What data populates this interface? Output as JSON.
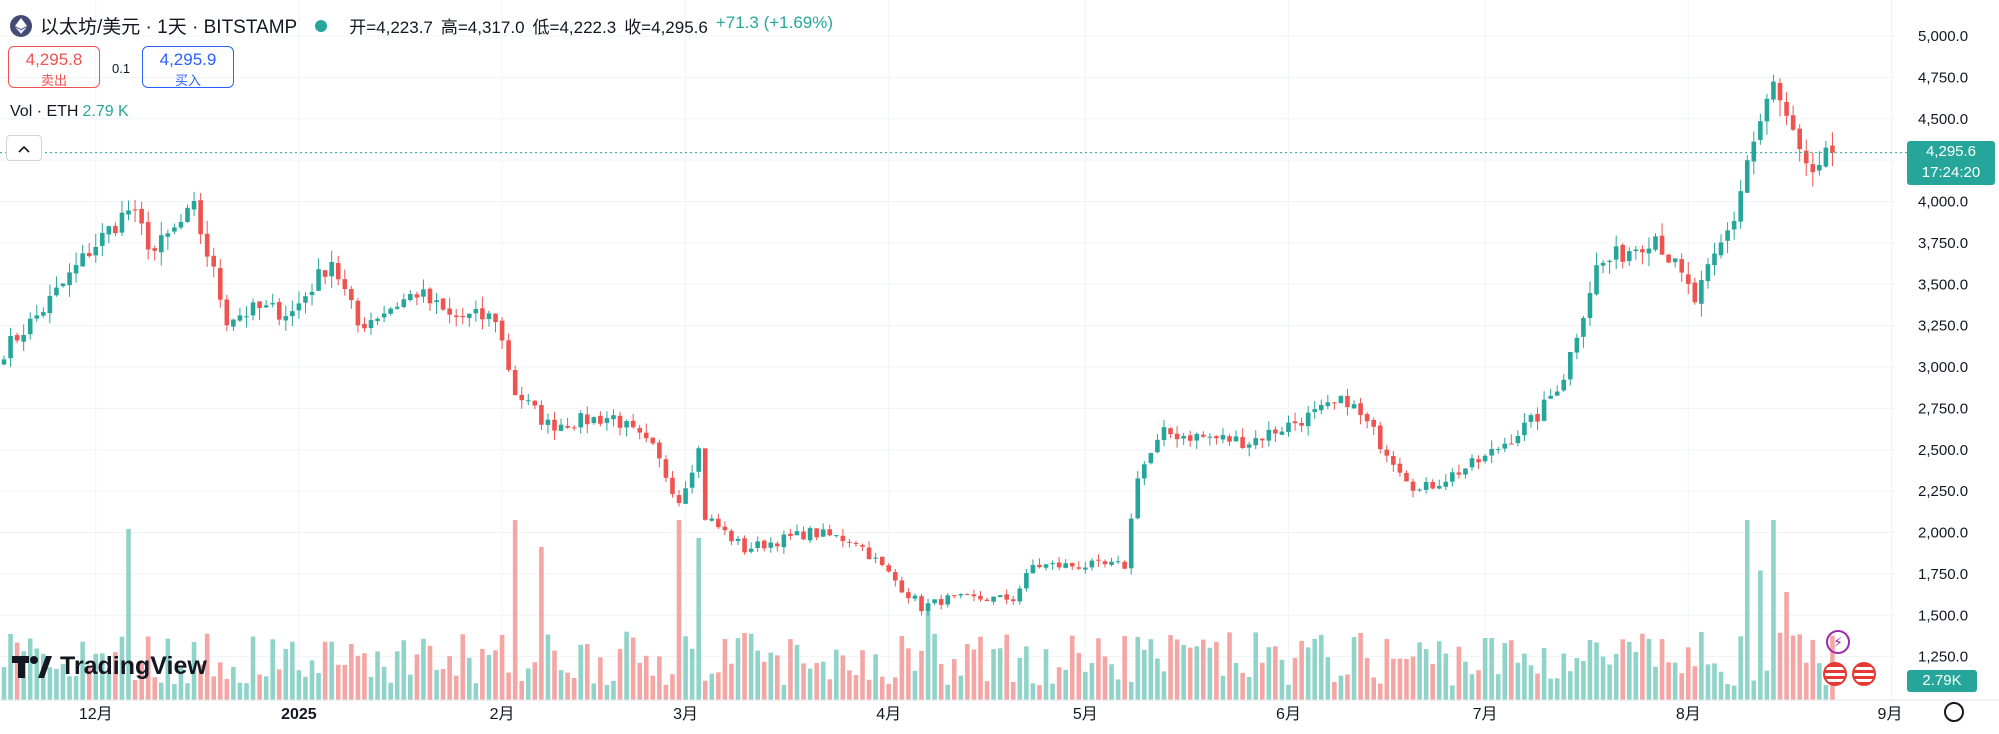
{
  "header": {
    "symbol": "以太坊/美元 · 1天 · BITSTAMP",
    "open": "开=4,223.7",
    "high": "高=4,317.0",
    "low": "低=4,222.3",
    "close": "收=4,295.6",
    "change": "+71.3 (+1.69%)"
  },
  "trade": {
    "sell_price": "4,295.8",
    "sell_label": "卖出",
    "spread": "0.1",
    "buy_price": "4,295.9",
    "buy_label": "买入"
  },
  "volume_legend": {
    "label": "Vol · ETH",
    "value": "2.79 K"
  },
  "logo_text": "TradingView",
  "price_tag": {
    "price": "4,295.6",
    "countdown": "17:24:20"
  },
  "volume_tag": "2.79K",
  "colors": {
    "up": "#26a69a",
    "down": "#ef5350",
    "up_vol": "#8fd3c9",
    "down_vol": "#f4a6a4",
    "grid": "#f0f3fa"
  },
  "icons": [
    "ethereum-icon",
    "market-status-dot-icon",
    "chevron-up-icon",
    "flash-icon",
    "us-flag-icon",
    "settings-icon"
  ],
  "chart_data": {
    "type": "candlestick",
    "y_axis": {
      "min": 1050,
      "max": 5100,
      "ticks": [
        5000,
        4750,
        4500,
        4250,
        4000,
        3750,
        3500,
        3250,
        3000,
        2750,
        2500,
        2250,
        2000,
        1750,
        1500,
        1250
      ],
      "tick_labels": [
        "5,000.0",
        "4,750.0",
        "4,500.0",
        "4,250.0",
        "4,000.0",
        "3,750.0",
        "3,500.0",
        "3,250.0",
        "3,000.0",
        "2,750.0",
        "2,500.0",
        "2,250.0",
        "2,000.0",
        "1,750.0",
        "1,500.0",
        "1,250.0"
      ]
    },
    "x_axis": {
      "start": "2024-11-17",
      "end": "2025-08-23",
      "ticks": [
        {
          "date": "2024-12-01",
          "label": "12月"
        },
        {
          "date": "2025-01-01",
          "label": "2025"
        },
        {
          "date": "2025-02-01",
          "label": "2月"
        },
        {
          "date": "2025-03-01",
          "label": "3月"
        },
        {
          "date": "2025-04-01",
          "label": "4月"
        },
        {
          "date": "2025-05-01",
          "label": "5月"
        },
        {
          "date": "2025-06-01",
          "label": "6月"
        },
        {
          "date": "2025-07-01",
          "label": "7月"
        },
        {
          "date": "2025-08-01",
          "label": "8月"
        },
        {
          "date": "2025-09-01",
          "label": "9月"
        }
      ]
    },
    "last_price": 4295.6,
    "anchors": [
      [
        "2024-11-17",
        3100
      ],
      [
        "2024-11-23",
        3350
      ],
      [
        "2024-11-30",
        3700
      ],
      [
        "2024-12-06",
        3950
      ],
      [
        "2024-12-10",
        3700
      ],
      [
        "2024-12-16",
        3950
      ],
      [
        "2024-12-21",
        3300
      ],
      [
        "2024-12-26",
        3350
      ],
      [
        "2024-12-31",
        3330
      ],
      [
        "2025-01-06",
        3650
      ],
      [
        "2025-01-10",
        3250
      ],
      [
        "2025-01-19",
        3450
      ],
      [
        "2025-01-24",
        3300
      ],
      [
        "2025-01-31",
        3300
      ],
      [
        "2025-02-03",
        2850
      ],
      [
        "2025-02-08",
        2650
      ],
      [
        "2025-02-18",
        2700
      ],
      [
        "2025-02-24",
        2500
      ],
      [
        "2025-02-28",
        2200
      ],
      [
        "2025-03-03",
        2500
      ],
      [
        "2025-03-04",
        2100
      ],
      [
        "2025-03-10",
        1900
      ],
      [
        "2025-03-20",
        2000
      ],
      [
        "2025-03-27",
        1950
      ],
      [
        "2025-04-06",
        1550
      ],
      [
        "2025-04-10",
        1600
      ],
      [
        "2025-04-20",
        1600
      ],
      [
        "2025-04-23",
        1800
      ],
      [
        "2025-05-07",
        1800
      ],
      [
        "2025-05-09",
        2350
      ],
      [
        "2025-05-13",
        2600
      ],
      [
        "2025-05-26",
        2550
      ],
      [
        "2025-06-10",
        2800
      ],
      [
        "2025-06-21",
        2250
      ],
      [
        "2025-07-01",
        2450
      ],
      [
        "2025-07-09",
        2700
      ],
      [
        "2025-07-13",
        2950
      ],
      [
        "2025-07-18",
        3600
      ],
      [
        "2025-07-27",
        3800
      ],
      [
        "2025-08-02",
        3400
      ],
      [
        "2025-08-08",
        3900
      ],
      [
        "2025-08-10",
        4250
      ],
      [
        "2025-08-14",
        4700
      ],
      [
        "2025-08-19",
        4150
      ],
      [
        "2025-08-23",
        4295.6
      ]
    ],
    "volume_spikes": [
      [
        "2024-12-06",
        0.95
      ],
      [
        "2025-02-03",
        1.0
      ],
      [
        "2025-02-07",
        0.85
      ],
      [
        "2025-02-28",
        1.0
      ],
      [
        "2025-03-03",
        0.9
      ],
      [
        "2025-04-07",
        0.5
      ],
      [
        "2025-05-09",
        0.35
      ],
      [
        "2025-08-10",
        1.0
      ],
      [
        "2025-08-14",
        1.0
      ],
      [
        "2025-08-12",
        0.72
      ],
      [
        "2025-08-16",
        0.6
      ]
    ]
  }
}
